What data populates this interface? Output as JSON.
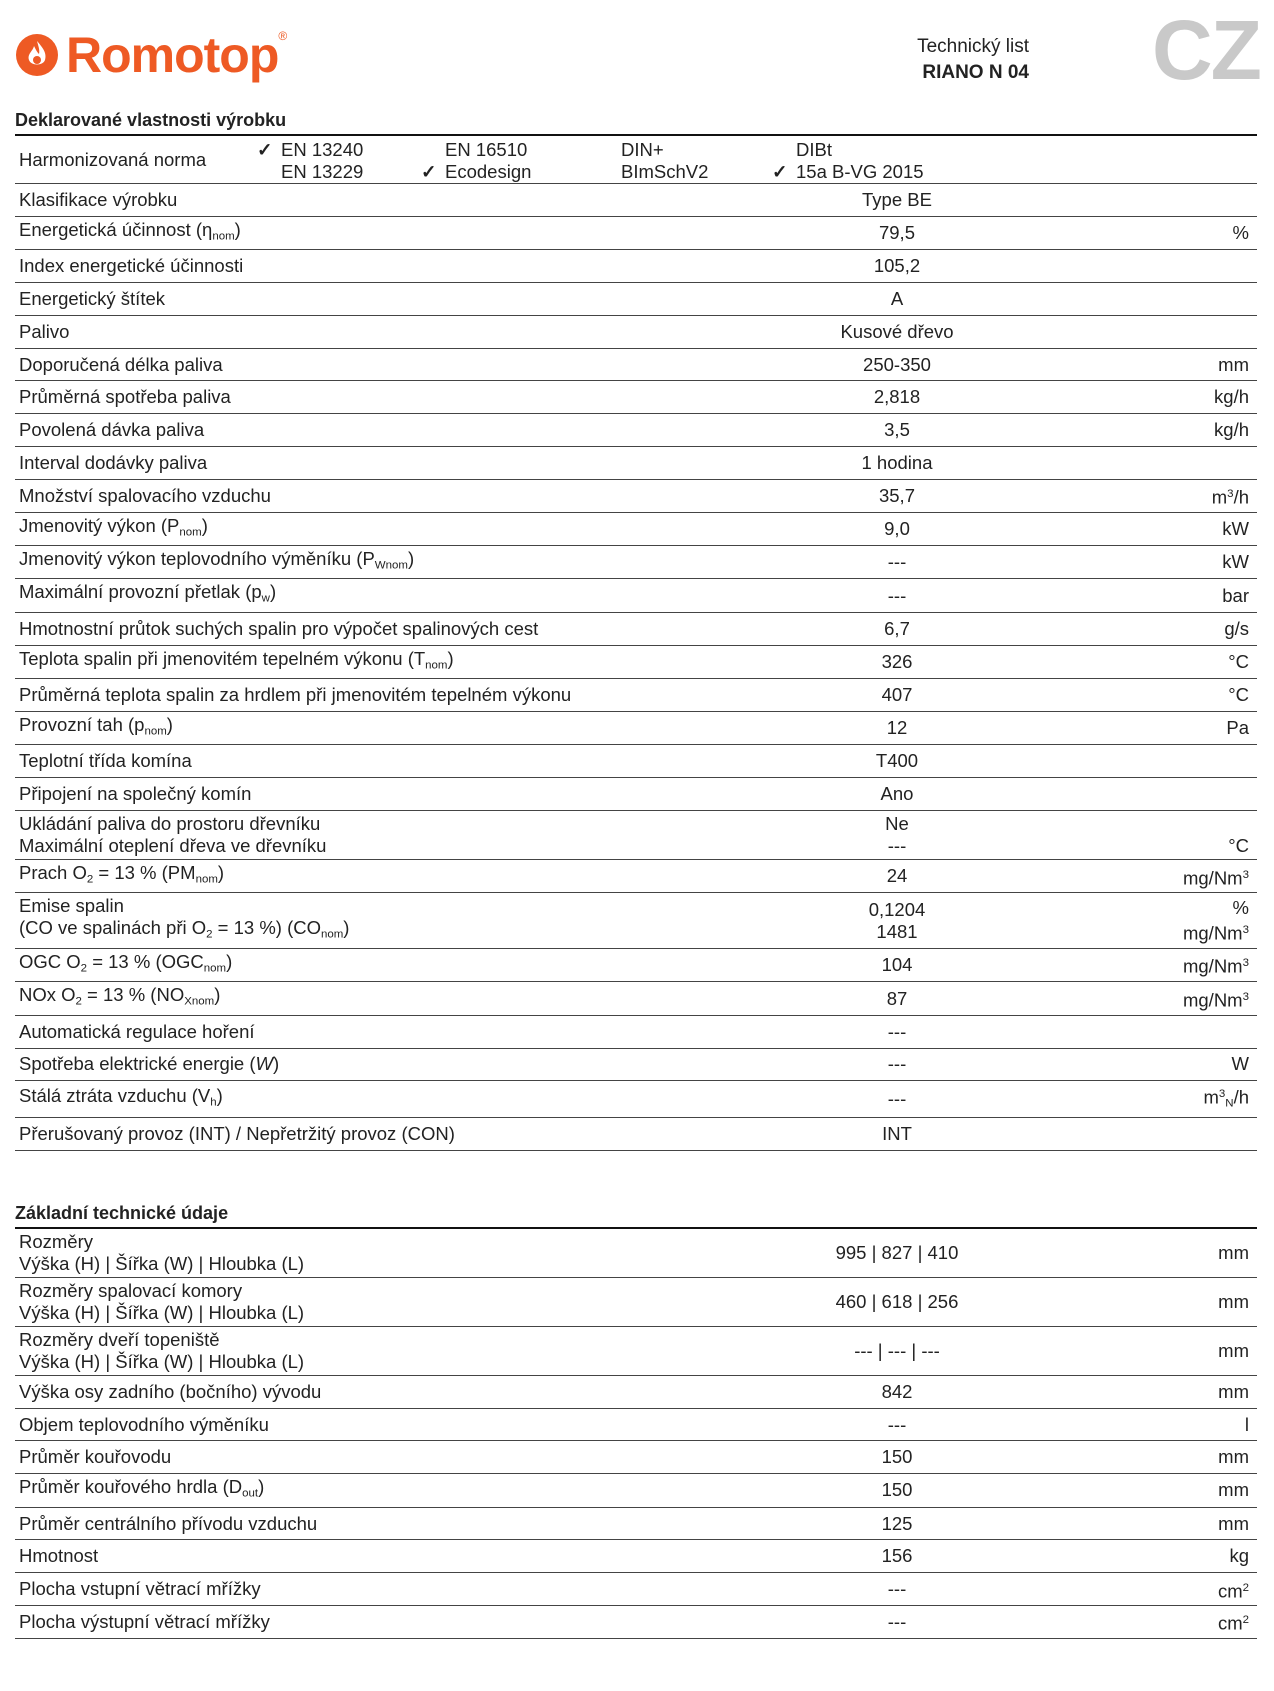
{
  "header": {
    "brand": "Romotop",
    "brand_mark": "®",
    "doc_type": "Technický list",
    "model": "RIANO N 04",
    "country": "CZ"
  },
  "sections": [
    {
      "title": "Deklarované vlastnosti výrobku",
      "norm": {
        "label": "Harmonizovaná norma",
        "groups": [
          [
            {
              "text": "EN 13240",
              "checked": true
            },
            {
              "text": "EN 13229",
              "checked": false
            }
          ],
          [
            {
              "text": "EN 16510",
              "checked": false
            },
            {
              "text": "Ecodesign",
              "checked": true
            }
          ],
          [
            {
              "text": "DIN+",
              "checked": false
            },
            {
              "text": "BImSchV2",
              "checked": false
            }
          ],
          [
            {
              "text": "DIBt",
              "checked": false
            },
            {
              "text": "15a B-VG 2015",
              "checked": true
            }
          ]
        ]
      },
      "rows": [
        {
          "label": [
            "Klasifikace výrobku"
          ],
          "value": [
            "Type BE"
          ]
        },
        {
          "label": [
            [
              "Energetická účinnost (η",
              {
                "t": "nom",
                "s": "sub"
              },
              ")"
            ]
          ],
          "value": [
            "79,5"
          ],
          "unit": [
            "%"
          ]
        },
        {
          "label": [
            "Index energetické účinnosti"
          ],
          "value": [
            "105,2"
          ]
        },
        {
          "label": [
            "Energetický štítek"
          ],
          "value": [
            "A"
          ]
        },
        {
          "label": [
            "Palivo"
          ],
          "value": [
            "Kusové dřevo"
          ]
        },
        {
          "label": [
            "Doporučená délka paliva"
          ],
          "value": [
            "250-350"
          ],
          "unit": [
            "mm"
          ]
        },
        {
          "label": [
            "Průměrná spotřeba paliva"
          ],
          "value": [
            "2,818"
          ],
          "unit": [
            "kg/h"
          ]
        },
        {
          "label": [
            "Povolená dávka paliva"
          ],
          "value": [
            "3,5"
          ],
          "unit": [
            "kg/h"
          ]
        },
        {
          "label": [
            "Interval dodávky paliva"
          ],
          "value": [
            "1 hodina"
          ]
        },
        {
          "label": [
            "Množství spalovacího vzduchu"
          ],
          "value": [
            "35,7"
          ],
          "unit": [
            [
              "m",
              {
                "t": "3",
                "s": "sup"
              },
              "/h"
            ]
          ]
        },
        {
          "label": [
            [
              "Jmenovitý výkon (P",
              {
                "t": "nom",
                "s": "sub"
              },
              ")"
            ]
          ],
          "value": [
            "9,0"
          ],
          "unit": [
            "kW"
          ]
        },
        {
          "label": [
            [
              "Jmenovitý výkon teplovodního výměníku (P",
              {
                "t": "Wnom",
                "s": "sub"
              },
              ")"
            ]
          ],
          "value": [
            "---"
          ],
          "unit": [
            "kW"
          ]
        },
        {
          "label": [
            [
              "Maximální provozní přetlak (p",
              {
                "t": "w",
                "s": "sub"
              },
              ")"
            ]
          ],
          "value": [
            "---"
          ],
          "unit": [
            "bar"
          ]
        },
        {
          "label": [
            "Hmotnostní průtok suchých spalin pro výpočet spalinových cest"
          ],
          "value": [
            "6,7"
          ],
          "unit": [
            "g/s"
          ]
        },
        {
          "label": [
            [
              "Teplota spalin při jmenovitém tepelném výkonu (T",
              {
                "t": "nom",
                "s": "sub"
              },
              ")"
            ]
          ],
          "value": [
            "326"
          ],
          "unit": [
            "°C"
          ]
        },
        {
          "label": [
            "Průměrná teplota spalin za hrdlem při jmenovitém tepelném výkonu"
          ],
          "value": [
            "407"
          ],
          "unit": [
            "°C"
          ]
        },
        {
          "label": [
            [
              "Provozní tah (p",
              {
                "t": "nom",
                "s": "sub"
              },
              ")"
            ]
          ],
          "value": [
            "12"
          ],
          "unit": [
            "Pa"
          ]
        },
        {
          "label": [
            "Teplotní třída komína"
          ],
          "value": [
            "T400"
          ]
        },
        {
          "label": [
            "Připojení na společný komín"
          ],
          "value": [
            "Ano"
          ]
        },
        {
          "label": [
            "Ukládání paliva do prostoru dřevníku",
            "Maximální oteplení dřeva ve dřevníku"
          ],
          "value": [
            "Ne",
            "---"
          ],
          "unit": [
            null,
            "°C"
          ]
        },
        {
          "label": [
            [
              "Prach O",
              {
                "t": "2",
                "s": "sub"
              },
              " = 13 % (PM",
              {
                "t": "nom",
                "s": "sub"
              },
              ")"
            ]
          ],
          "value": [
            "24"
          ],
          "unit": [
            [
              "mg/Nm",
              {
                "t": "3",
                "s": "sup"
              }
            ]
          ]
        },
        {
          "label": [
            "Emise spalin",
            [
              "(CO ve spalinách při O",
              {
                "t": "2",
                "s": "sub"
              },
              " = 13 %) (CO",
              {
                "t": "nom",
                "s": "sub"
              },
              ")"
            ]
          ],
          "value": [
            "0,1204",
            "1481"
          ],
          "unit": [
            "%",
            [
              "mg/Nm",
              {
                "t": "3",
                "s": "sup"
              }
            ]
          ]
        },
        {
          "label": [
            [
              "OGC O",
              {
                "t": "2",
                "s": "sub"
              },
              " = 13 % (OGC",
              {
                "t": "nom",
                "s": "sub"
              },
              ")"
            ]
          ],
          "value": [
            "104"
          ],
          "unit": [
            [
              "mg/Nm",
              {
                "t": "3",
                "s": "sup"
              }
            ]
          ]
        },
        {
          "label": [
            [
              "NOx O",
              {
                "t": "2",
                "s": "sub"
              },
              " = 13 % (NO",
              {
                "t": "Xnom",
                "s": "sub"
              },
              ")"
            ]
          ],
          "value": [
            "87"
          ],
          "unit": [
            [
              "mg/Nm",
              {
                "t": "3",
                "s": "sup"
              }
            ]
          ]
        },
        {
          "label": [
            "Automatická regulace hoření"
          ],
          "value": [
            "---"
          ]
        },
        {
          "label": [
            [
              "Spotřeba elektrické energie (",
              {
                "t": "W",
                "s": "i"
              },
              ")"
            ]
          ],
          "value": [
            "---"
          ],
          "unit": [
            "W"
          ]
        },
        {
          "label": [
            [
              "Stálá ztráta vzduchu (V",
              {
                "t": "h",
                "s": "sub"
              },
              ")"
            ]
          ],
          "value": [
            "---"
          ],
          "unit": [
            [
              "m",
              {
                "t": "3",
                "s": "sup"
              },
              {
                "t": "N",
                "s": "sub"
              },
              "/h"
            ]
          ]
        },
        {
          "label": [
            "Přerušovaný provoz (INT) / Nepřetržitý provoz (CON)"
          ],
          "value": [
            "INT"
          ]
        }
      ]
    },
    {
      "title": "Základní technické údaje",
      "rows": [
        {
          "label": [
            "Rozměry",
            "Výška (H) | Šířka (W) | Hloubka (L)"
          ],
          "value": [
            "995 | 827 | 410"
          ],
          "unit": [
            "mm"
          ]
        },
        {
          "label": [
            "Rozměry spalovací komory",
            "Výška (H) | Šířka (W) | Hloubka (L)"
          ],
          "value": [
            "460 | 618 | 256"
          ],
          "unit": [
            "mm"
          ]
        },
        {
          "label": [
            "Rozměry dveří topeniště",
            "Výška (H) | Šířka (W) | Hloubka (L)"
          ],
          "value": [
            "--- | --- | ---"
          ],
          "unit": [
            "mm"
          ]
        },
        {
          "label": [
            "Výška osy zadního (bočního) vývodu"
          ],
          "value": [
            "842"
          ],
          "unit": [
            "mm"
          ]
        },
        {
          "label": [
            "Objem teplovodního výměníku"
          ],
          "value": [
            "---"
          ],
          "unit": [
            "l"
          ]
        },
        {
          "label": [
            "Průměr kouřovodu"
          ],
          "value": [
            "150"
          ],
          "unit": [
            "mm"
          ]
        },
        {
          "label": [
            [
              "Průměr kouřového hrdla (D",
              {
                "t": "out",
                "s": "sub"
              },
              ")"
            ]
          ],
          "value": [
            "150"
          ],
          "unit": [
            "mm"
          ]
        },
        {
          "label": [
            "Průměr centrálního přívodu vzduchu"
          ],
          "value": [
            "125"
          ],
          "unit": [
            "mm"
          ]
        },
        {
          "label": [
            "Hmotnost"
          ],
          "value": [
            "156"
          ],
          "unit": [
            "kg"
          ]
        },
        {
          "label": [
            "Plocha vstupní větrací mřížky"
          ],
          "value": [
            "---"
          ],
          "unit": [
            [
              "cm",
              {
                "t": "2",
                "s": "sup"
              }
            ]
          ]
        },
        {
          "label": [
            "Plocha výstupní větrací mřížky"
          ],
          "value": [
            "---"
          ],
          "unit": [
            [
              "cm",
              {
                "t": "2",
                "s": "sup"
              }
            ]
          ]
        }
      ]
    }
  ]
}
